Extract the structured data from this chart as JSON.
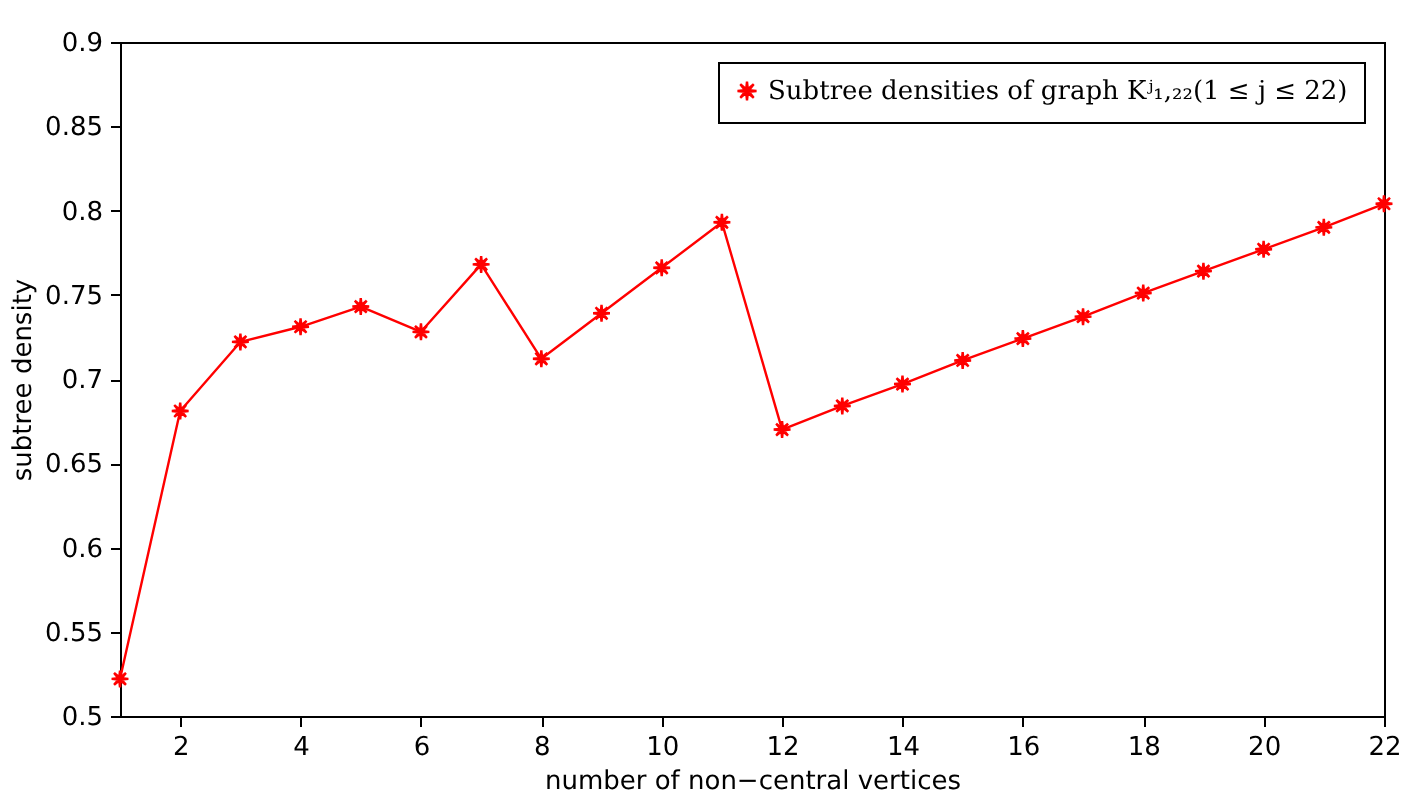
{
  "chart_data": {
    "type": "line",
    "xlabel": "number of non−central vertices",
    "ylabel": "subtree density",
    "x": [
      1,
      2,
      3,
      4,
      5,
      6,
      7,
      8,
      9,
      10,
      11,
      12,
      13,
      14,
      15,
      16,
      17,
      18,
      19,
      20,
      21,
      22
    ],
    "series": [
      {
        "name": "Subtree densities of graph Kʲ₁,₂₂(1 ≤ j ≤ 22)",
        "color": "#ff0000",
        "values": [
          0.522,
          0.681,
          0.722,
          0.731,
          0.743,
          0.728,
          0.768,
          0.712,
          0.739,
          0.766,
          0.793,
          0.67,
          0.684,
          0.697,
          0.711,
          0.724,
          0.737,
          0.751,
          0.764,
          0.777,
          0.79,
          0.804
        ]
      }
    ],
    "xlim": [
      1,
      22
    ],
    "xticks": [
      2,
      4,
      6,
      8,
      10,
      12,
      14,
      16,
      18,
      20,
      22
    ],
    "ylim": [
      0.5,
      0.9
    ],
    "yticks": [
      {
        "value": 0.5,
        "label": "0.5"
      },
      0.55,
      {
        "value": 0.6,
        "label": "0.6"
      },
      0.65,
      {
        "value": 0.7,
        "label": "0.7"
      },
      0.75,
      {
        "value": 0.8,
        "label": "0.8"
      },
      0.85,
      {
        "value": 0.9,
        "label": "0.9"
      }
    ],
    "grid": false,
    "legend": "top right",
    "marker": "star",
    "line_style": "solid"
  }
}
